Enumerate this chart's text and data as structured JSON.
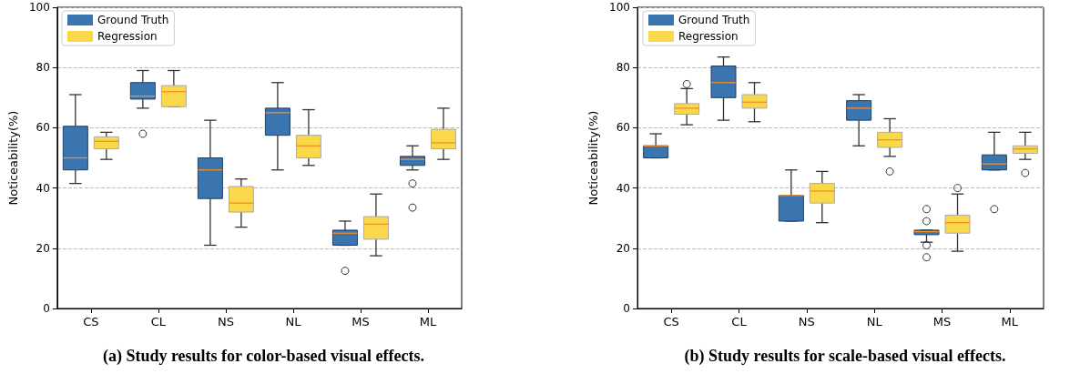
{
  "chart_data": [
    {
      "type": "box",
      "title": "(a) Study results for color-based visual effects.",
      "ylabel": "Noticeability(%)",
      "categories": [
        "CS",
        "CL",
        "NS",
        "NL",
        "MS",
        "ML"
      ],
      "ylim": [
        0,
        100
      ],
      "yticks": [
        0,
        20,
        40,
        60,
        80,
        100
      ],
      "grid": "y",
      "legend": "top left",
      "series": [
        {
          "name": "Ground Truth",
          "color": "#3a75af",
          "boxes": [
            {
              "low": 41.5,
              "q1": 46,
              "median": 50,
              "q3": 60.5,
              "high": 71
            },
            {
              "low": 66.5,
              "q1": 69.5,
              "median": 70.5,
              "q3": 75,
              "high": 79,
              "outliers": [
                58
              ]
            },
            {
              "low": 21,
              "q1": 36.5,
              "median": 46,
              "q3": 50,
              "high": 62.5
            },
            {
              "low": 46,
              "q1": 57.5,
              "median": 65,
              "q3": 66.5,
              "high": 75
            },
            {
              "low": 21,
              "q1": 21,
              "median": 25,
              "q3": 26,
              "high": 29,
              "outliers": [
                12.5
              ]
            },
            {
              "low": 46,
              "q1": 47.5,
              "median": 49.5,
              "q3": 50.5,
              "high": 54,
              "outliers": [
                41.5,
                33.5
              ]
            }
          ]
        },
        {
          "name": "Regression",
          "color": "#f9d84a",
          "boxes": [
            {
              "low": 49.5,
              "q1": 53,
              "median": 55.5,
              "q3": 57,
              "high": 58.5
            },
            {
              "low": 67,
              "q1": 67,
              "median": 72,
              "q3": 74,
              "high": 79
            },
            {
              "low": 27,
              "q1": 32,
              "median": 35,
              "q3": 40.5,
              "high": 43
            },
            {
              "low": 47.5,
              "q1": 50,
              "median": 54,
              "q3": 57.5,
              "high": 66
            },
            {
              "low": 17.5,
              "q1": 23,
              "median": 28,
              "q3": 30.5,
              "high": 38
            },
            {
              "low": 49.5,
              "q1": 53,
              "median": 55,
              "q3": 59.5,
              "high": 66.5
            }
          ]
        }
      ]
    },
    {
      "type": "box",
      "title": "(b) Study results for scale-based visual effects.",
      "ylabel": "Noticeability(%)",
      "categories": [
        "CS",
        "CL",
        "NS",
        "NL",
        "MS",
        "ML"
      ],
      "ylim": [
        0,
        100
      ],
      "yticks": [
        0,
        20,
        40,
        60,
        80,
        100
      ],
      "grid": "y",
      "legend": "top left",
      "series": [
        {
          "name": "Ground Truth",
          "color": "#3a75af",
          "boxes": [
            {
              "low": 50,
              "q1": 50,
              "median": 54,
              "q3": 54,
              "high": 58
            },
            {
              "low": 62.5,
              "q1": 70,
              "median": 75,
              "q3": 80.5,
              "high": 83.5
            },
            {
              "low": 29,
              "q1": 29,
              "median": 37.5,
              "q3": 37.5,
              "high": 46
            },
            {
              "low": 54,
              "q1": 62.5,
              "median": 66.5,
              "q3": 69,
              "high": 71
            },
            {
              "low": 22,
              "q1": 24.5,
              "median": 25.5,
              "q3": 26,
              "high": 26,
              "outliers": [
                33,
                29,
                21,
                17
              ]
            },
            {
              "low": 46,
              "q1": 46,
              "median": 48,
              "q3": 51,
              "high": 58.5,
              "outliers": [
                33
              ]
            }
          ]
        },
        {
          "name": "Regression",
          "color": "#f9d84a",
          "boxes": [
            {
              "low": 61,
              "q1": 64.5,
              "median": 66.5,
              "q3": 68,
              "high": 73,
              "outliers": [
                74.5
              ]
            },
            {
              "low": 62,
              "q1": 66.5,
              "median": 68.5,
              "q3": 71,
              "high": 75
            },
            {
              "low": 28.5,
              "q1": 35,
              "median": 39,
              "q3": 41.5,
              "high": 45.5
            },
            {
              "low": 50.5,
              "q1": 53.5,
              "median": 56,
              "q3": 58.5,
              "high": 63,
              "outliers": [
                45.5
              ]
            },
            {
              "low": 19,
              "q1": 25,
              "median": 28.5,
              "q3": 31,
              "high": 38,
              "outliers": [
                40
              ]
            },
            {
              "low": 49.5,
              "q1": 51.5,
              "median": 53,
              "q3": 54,
              "high": 58.5,
              "outliers": [
                45
              ]
            }
          ]
        }
      ]
    }
  ]
}
